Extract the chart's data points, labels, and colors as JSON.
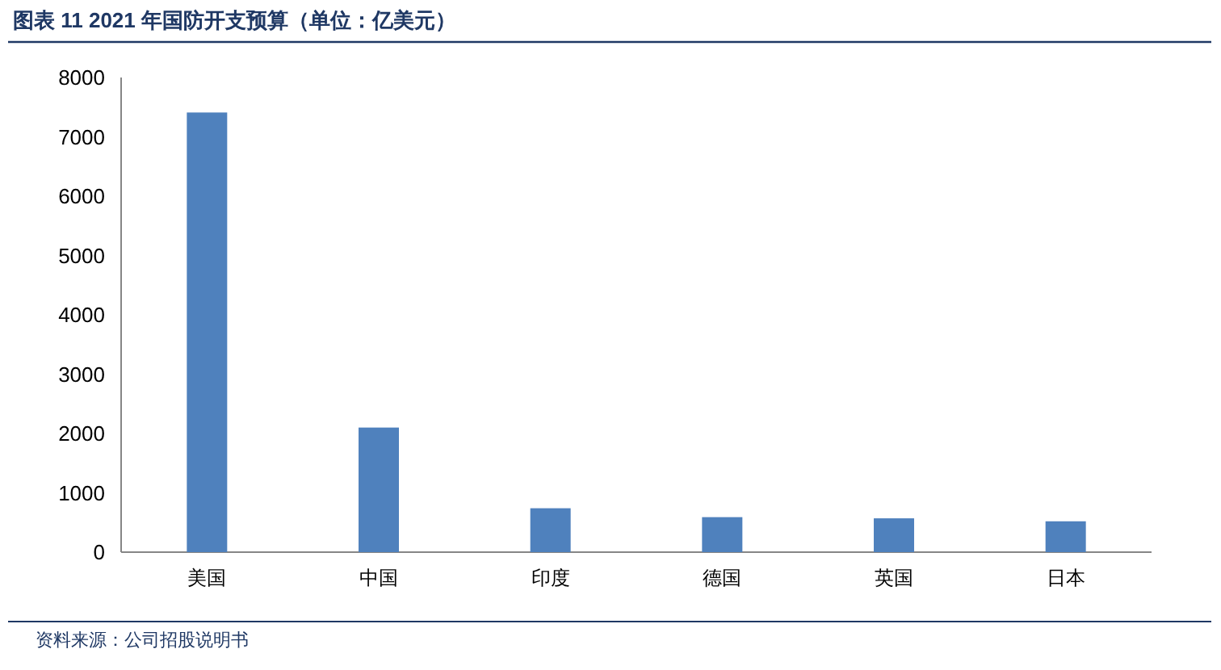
{
  "chart_data": {
    "type": "bar",
    "title": "图表 11 2021 年国防开支预算（单位：亿美元）",
    "categories": [
      "美国",
      "中国",
      "印度",
      "德国",
      "英国",
      "日本"
    ],
    "values": [
      7410,
      2100,
      740,
      590,
      570,
      520
    ],
    "color": "#4f81bd",
    "ylim": [
      0,
      8000
    ],
    "yticks": [
      0,
      1000,
      2000,
      3000,
      4000,
      5000,
      6000,
      7000,
      8000
    ],
    "grid": false,
    "annotations": [
      "资料来源：公司招股说明书"
    ]
  }
}
